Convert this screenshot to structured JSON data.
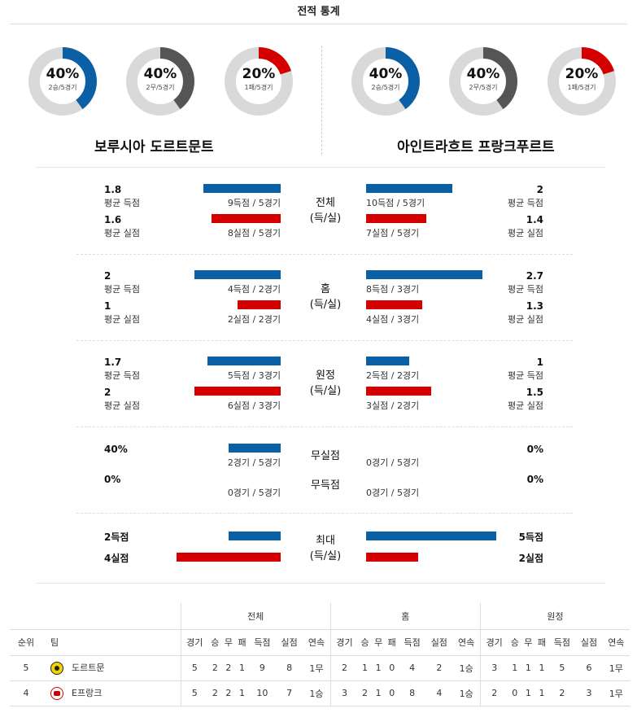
{
  "header": {
    "title": "전적 통계"
  },
  "colors": {
    "blue": "#0b5fa5",
    "red": "#d40000",
    "gray": "#555555",
    "track": "#d9d9d9"
  },
  "donuts_left": [
    {
      "pct": "40%",
      "sub": "2승/5경기",
      "fraction": 0.4,
      "color": "#0b5fa5"
    },
    {
      "pct": "40%",
      "sub": "2무/5경기",
      "fraction": 0.4,
      "color": "#555555"
    },
    {
      "pct": "20%",
      "sub": "1패/5경기",
      "fraction": 0.2,
      "color": "#d40000"
    }
  ],
  "donuts_right": [
    {
      "pct": "40%",
      "sub": "2승/5경기",
      "fraction": 0.4,
      "color": "#0b5fa5"
    },
    {
      "pct": "40%",
      "sub": "2무/5경기",
      "fraction": 0.4,
      "color": "#555555"
    },
    {
      "pct": "20%",
      "sub": "1패/5경기",
      "fraction": 0.2,
      "color": "#d40000"
    }
  ],
  "teams": {
    "left": "보루시아 도르트문트",
    "right": "아인트라흐트 프랑크푸르트"
  },
  "sections": {
    "total": {
      "title_line1": "전체",
      "title_line2": "(득/실)",
      "left_score": {
        "value": "1.8",
        "label": "평균 득점",
        "caption": "9득점 / 5경기",
        "level": 1.8
      },
      "left_concede": {
        "value": "1.6",
        "label": "평균 실점",
        "caption": "8실점 / 5경기",
        "level": 1.6
      },
      "right_score": {
        "value": "2",
        "label": "평균 득점",
        "caption": "10득점 / 5경기",
        "level": 2
      },
      "right_concede": {
        "value": "1.4",
        "label": "평균 실점",
        "caption": "7실점 / 5경기",
        "level": 1.4
      }
    },
    "home": {
      "title_line1": "홈",
      "title_line2": "(득/실)",
      "left_score": {
        "value": "2",
        "label": "평균 득점",
        "caption": "4득점 / 2경기",
        "level": 2
      },
      "left_concede": {
        "value": "1",
        "label": "평균 실점",
        "caption": "2실점 / 2경기",
        "level": 1
      },
      "right_score": {
        "value": "2.7",
        "label": "평균 득점",
        "caption": "8득점 / 3경기",
        "level": 2.7
      },
      "right_concede": {
        "value": "1.3",
        "label": "평균 실점",
        "caption": "4실점 / 3경기",
        "level": 1.3
      }
    },
    "away": {
      "title_line1": "원정",
      "title_line2": "(득/실)",
      "left_score": {
        "value": "1.7",
        "label": "평균 득점",
        "caption": "5득점 / 3경기",
        "level": 1.7
      },
      "left_concede": {
        "value": "2",
        "label": "평균 실점",
        "caption": "6실점 / 3경기",
        "level": 2
      },
      "right_score": {
        "value": "1",
        "label": "평균 득점",
        "caption": "2득점 / 2경기",
        "level": 1
      },
      "right_concede": {
        "value": "1.5",
        "label": "평균 실점",
        "caption": "3실점 / 2경기",
        "level": 1.5
      }
    },
    "clean": {
      "title_a": "무실점",
      "title_b": "무득점",
      "left_a": {
        "value": "40%",
        "caption": "2경기 / 5경기",
        "level": 0.4
      },
      "left_b": {
        "value": "0%",
        "caption": "0경기 / 5경기",
        "level": 0
      },
      "right_a": {
        "value": "0%",
        "caption": "0경기 / 5경기",
        "level": 0
      },
      "right_b": {
        "value": "0%",
        "caption": "0경기 / 5경기",
        "level": 0
      }
    },
    "max": {
      "title_line1": "최대",
      "title_line2": "(득/실)",
      "left_score": {
        "value": "2득점",
        "level": 2
      },
      "left_concede": {
        "value": "4실점",
        "level": 4
      },
      "right_score": {
        "value": "5득점",
        "level": 5
      },
      "right_concede": {
        "value": "2실점",
        "level": 2
      }
    }
  },
  "table": {
    "groups": [
      "전체",
      "홈",
      "원정"
    ],
    "head_rank": "순위",
    "head_team": "팀",
    "cols": [
      "경기",
      "승",
      "무",
      "패",
      "득점",
      "실점",
      "연속"
    ],
    "rows": [
      {
        "rank": "5",
        "team": "도르트문",
        "logo": "bvb",
        "total": [
          "5",
          "2",
          "2",
          "1",
          "9",
          "8",
          "1무"
        ],
        "home": [
          "2",
          "1",
          "1",
          "0",
          "4",
          "2",
          "1승"
        ],
        "away": [
          "3",
          "1",
          "1",
          "1",
          "5",
          "6",
          "1무"
        ]
      },
      {
        "rank": "4",
        "team": "E프랑크",
        "logo": "sge",
        "total": [
          "5",
          "2",
          "2",
          "1",
          "10",
          "7",
          "1승"
        ],
        "home": [
          "3",
          "2",
          "1",
          "0",
          "8",
          "4",
          "1승"
        ],
        "away": [
          "2",
          "0",
          "1",
          "1",
          "2",
          "3",
          "1무"
        ]
      }
    ]
  }
}
